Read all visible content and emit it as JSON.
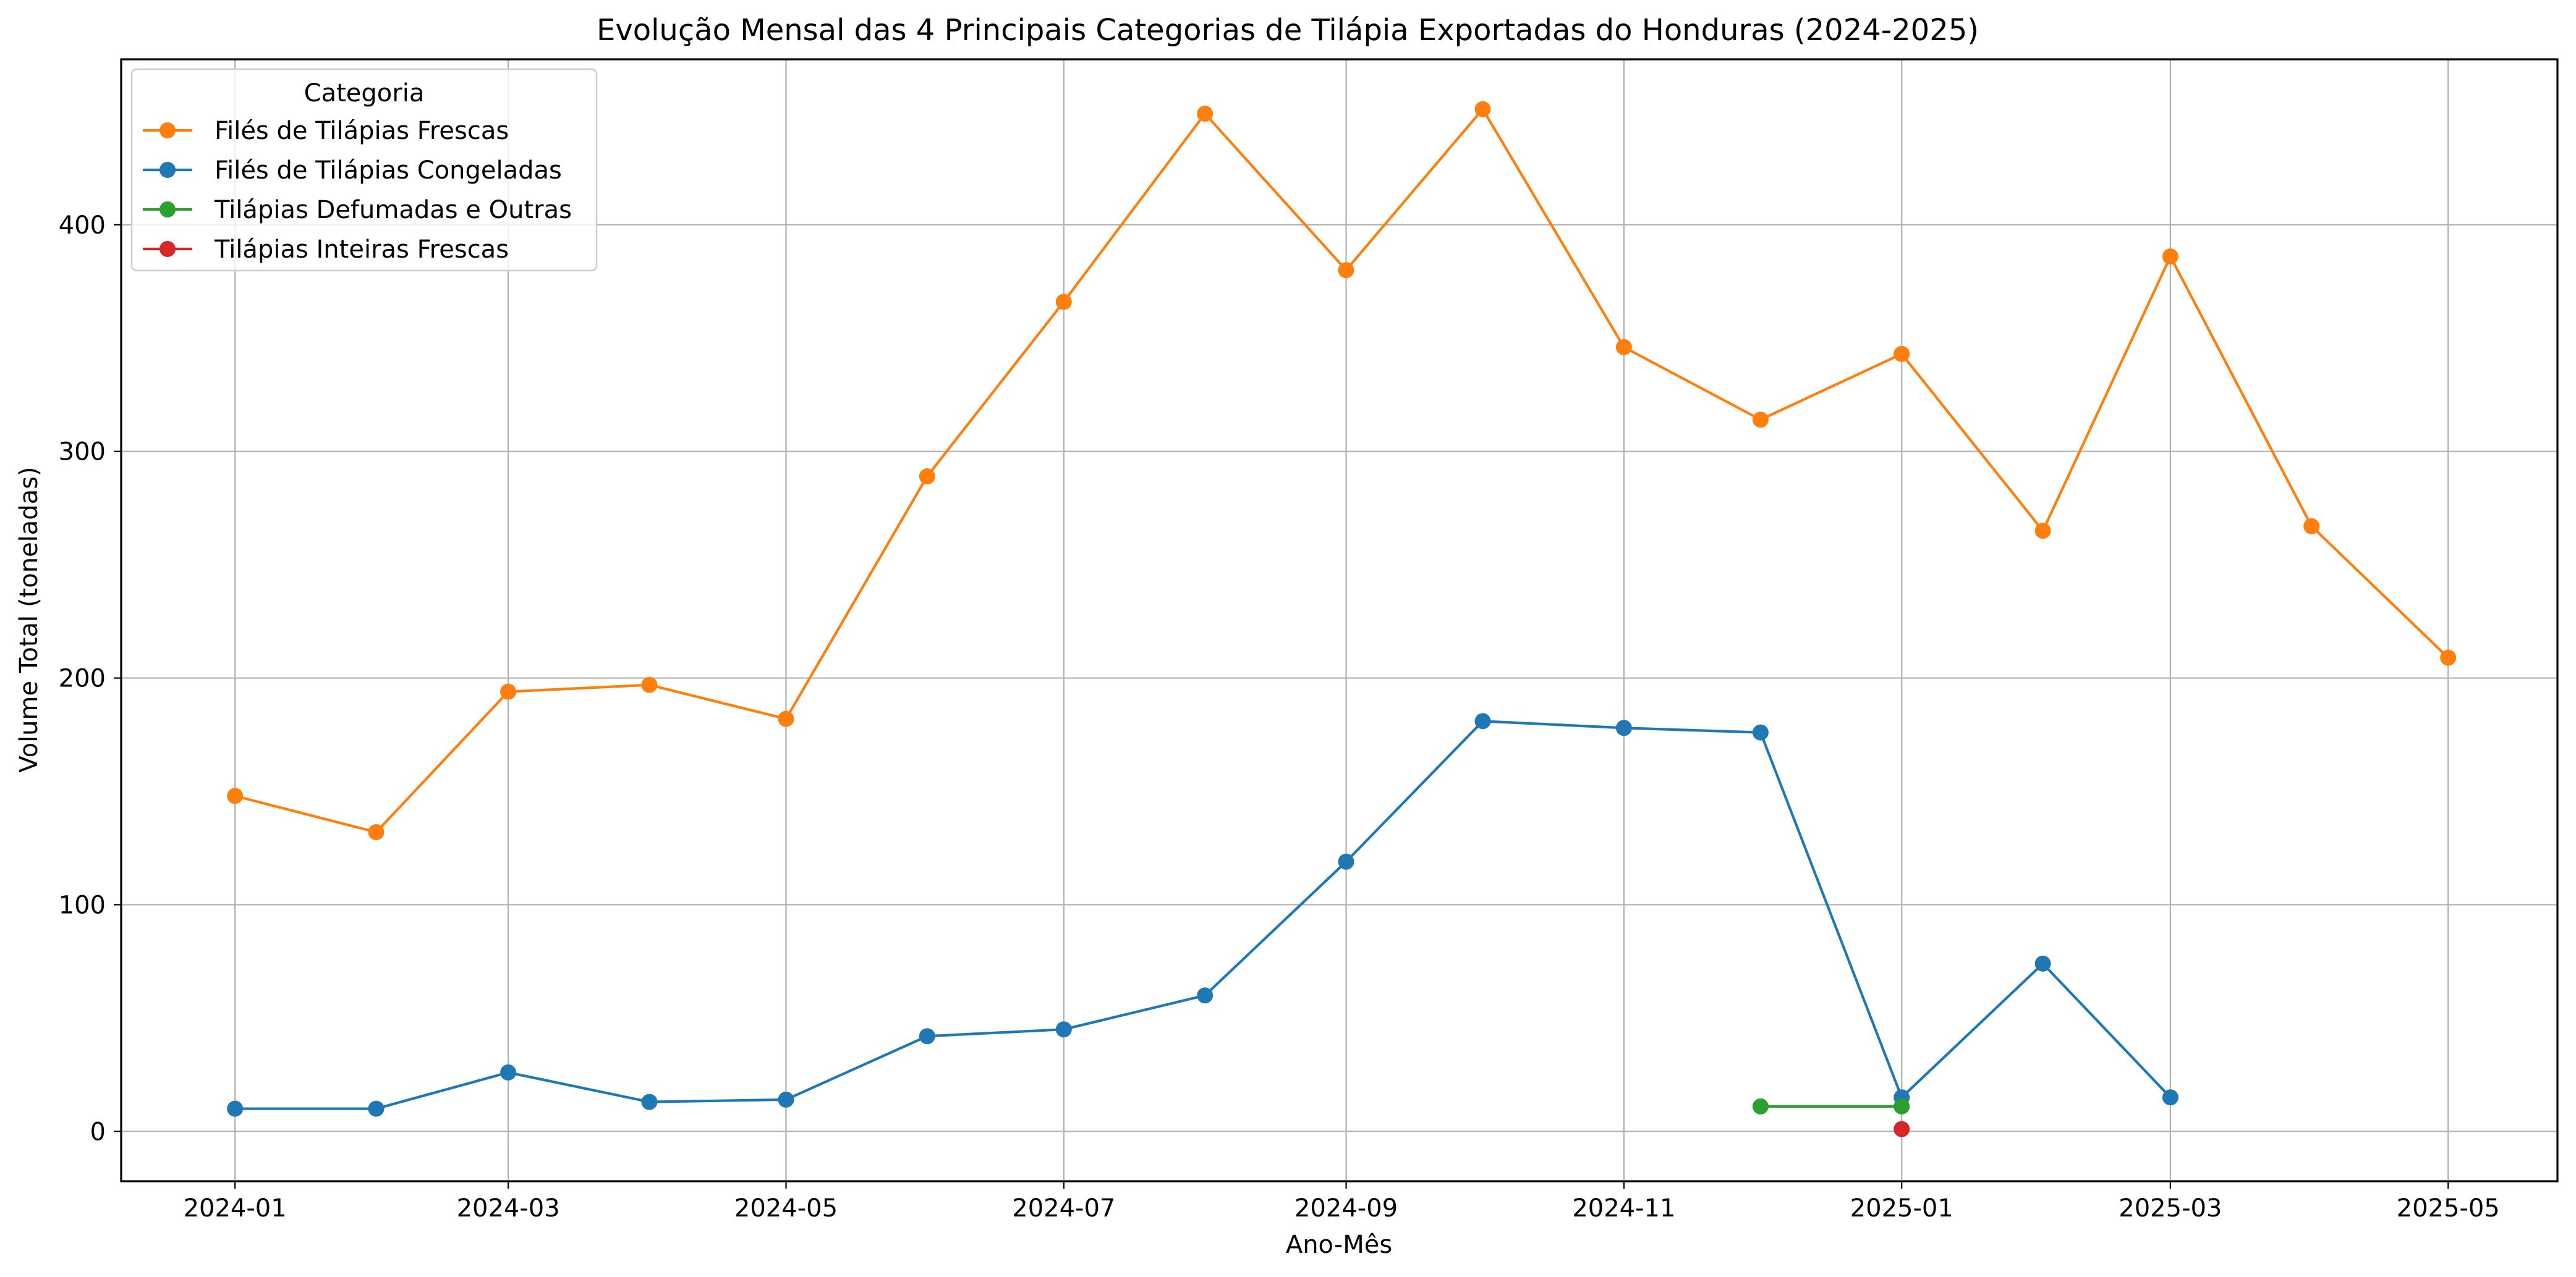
{
  "chart_data": {
    "type": "line",
    "title": "Evolução Mensal das 4 Principais Categorias de Tilápia Exportadas do Honduras (2024-2025)",
    "xlabel": "Ano-Mês",
    "ylabel": "Volume Total (toneladas)",
    "x_ticks": [
      "2024-01",
      "2024-03",
      "2024-05",
      "2024-07",
      "2024-09",
      "2024-11",
      "2025-01",
      "2025-03",
      "2025-05"
    ],
    "y_ticks": [
      0,
      100,
      200,
      300,
      400
    ],
    "xlim": [
      "2023-12-07",
      "2025-05-25"
    ],
    "ylim": [
      -22,
      473
    ],
    "grid": true,
    "legend": {
      "title": "Categoria",
      "placement": "top-left"
    },
    "series": [
      {
        "name": "Filés de Tilápias Frescas",
        "color": "#ff7f0e",
        "points": [
          {
            "x": "2024-01",
            "y": 148
          },
          {
            "x": "2024-02",
            "y": 132
          },
          {
            "x": "2024-03",
            "y": 194
          },
          {
            "x": "2024-04",
            "y": 197
          },
          {
            "x": "2024-05",
            "y": 182
          },
          {
            "x": "2024-06",
            "y": 289
          },
          {
            "x": "2024-07",
            "y": 366
          },
          {
            "x": "2024-08",
            "y": 449
          },
          {
            "x": "2024-09",
            "y": 380
          },
          {
            "x": "2024-10",
            "y": 451
          },
          {
            "x": "2024-11",
            "y": 346
          },
          {
            "x": "2024-12",
            "y": 314
          },
          {
            "x": "2025-01",
            "y": 343
          },
          {
            "x": "2025-02",
            "y": 265
          },
          {
            "x": "2025-03",
            "y": 386
          },
          {
            "x": "2025-04",
            "y": 267
          },
          {
            "x": "2025-05",
            "y": 209
          }
        ]
      },
      {
        "name": "Filés de Tilápias Congeladas",
        "color": "#1f77b4",
        "points": [
          {
            "x": "2024-01",
            "y": 10
          },
          {
            "x": "2024-02",
            "y": 10
          },
          {
            "x": "2024-03",
            "y": 26
          },
          {
            "x": "2024-04",
            "y": 13
          },
          {
            "x": "2024-05",
            "y": 14
          },
          {
            "x": "2024-06",
            "y": 42
          },
          {
            "x": "2024-07",
            "y": 45
          },
          {
            "x": "2024-08",
            "y": 60
          },
          {
            "x": "2024-09",
            "y": 119
          },
          {
            "x": "2024-10",
            "y": 181
          },
          {
            "x": "2024-11",
            "y": 178
          },
          {
            "x": "2024-12",
            "y": 176
          },
          {
            "x": "2025-01",
            "y": 15
          },
          {
            "x": "2025-02",
            "y": 74
          },
          {
            "x": "2025-03",
            "y": 15
          }
        ]
      },
      {
        "name": "Tilápias Defumadas e Outras",
        "color": "#2ca02c",
        "points": [
          {
            "x": "2024-12",
            "y": 11
          },
          {
            "x": "2025-01",
            "y": 11
          }
        ]
      },
      {
        "name": "Tilápias Inteiras Frescas",
        "color": "#d62728",
        "points": [
          {
            "x": "2025-01",
            "y": 1
          }
        ]
      }
    ]
  }
}
